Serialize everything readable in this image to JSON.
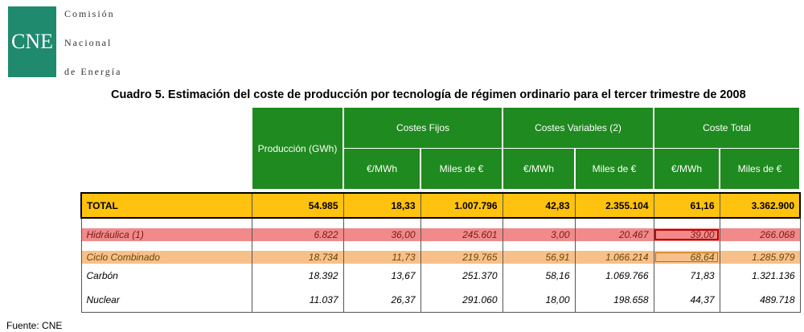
{
  "logo": {
    "abbr": "CNE",
    "line1": "Comisión",
    "line2": "Nacional",
    "line3": "de Energía"
  },
  "title": "Cuadro 5. Estimación del coste de producción por tecnología de régimen ordinario para el tercer trimestre de 2008",
  "headers": {
    "produccion": "Producción (GWh)",
    "costes_fijos": "Costes Fijos",
    "costes_variables": "Costes Variables (2)",
    "coste_total": "Coste Total",
    "eur_mwh": "€/MWh",
    "miles_eur": "Miles de €"
  },
  "total": {
    "label": "TOTAL",
    "values": [
      "54.985",
      "18,33",
      "1.007.796",
      "42,83",
      "2.355.104",
      "61,16",
      "3.362.900"
    ]
  },
  "rows": [
    {
      "label": "Hidráulica (1)",
      "values": [
        "6.822",
        "36,00",
        "245.601",
        "3,00",
        "20.467",
        "39,00",
        "266.068"
      ]
    },
    {
      "label": "Ciclo Combinado",
      "values": [
        "18.734",
        "11,73",
        "219.765",
        "56,91",
        "1.066.214",
        "68,64",
        "1.285.979"
      ]
    },
    {
      "label": "Carbón",
      "values": [
        "18.392",
        "13,67",
        "251.370",
        "58,16",
        "1.069.766",
        "71,83",
        "1.321.136"
      ]
    },
    {
      "label": "Nuclear",
      "values": [
        "11.037",
        "26,37",
        "291.060",
        "18,00",
        "198.658",
        "44,37",
        "489.718"
      ]
    }
  ],
  "colors": {
    "header_green": "#1f8a1f",
    "total_yellow": "#ffc20e",
    "hidraulica_red": "#f18a8a",
    "ciclo_orange": "#f7c08a",
    "logo_green": "#1f8a6e"
  },
  "footer": "Fuente: CNE"
}
